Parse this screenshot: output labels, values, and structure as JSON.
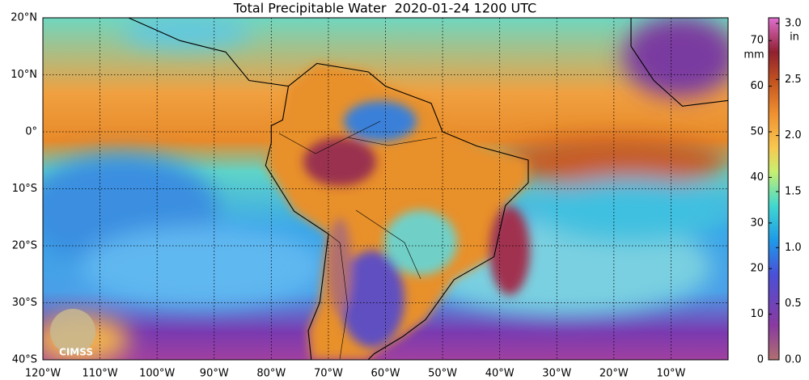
{
  "title": "Total Precipitable Water  2020-01-24 1200 UTC",
  "map": {
    "xlim": [
      -120,
      0
    ],
    "ylim": [
      -40,
      20
    ],
    "grid": true,
    "xticks": [
      {
        "value": -120,
        "label": "120°W"
      },
      {
        "value": -110,
        "label": "110°W"
      },
      {
        "value": -100,
        "label": "100°W"
      },
      {
        "value": -90,
        "label": "90°W"
      },
      {
        "value": -80,
        "label": "80°W"
      },
      {
        "value": -70,
        "label": "70°W"
      },
      {
        "value": -60,
        "label": "60°W"
      },
      {
        "value": -50,
        "label": "50°W"
      },
      {
        "value": -40,
        "label": "40°W"
      },
      {
        "value": -30,
        "label": "30°W"
      },
      {
        "value": -20,
        "label": "20°W"
      },
      {
        "value": -10,
        "label": "10°W"
      }
    ],
    "yticks": [
      {
        "value": 20,
        "label": "20°N"
      },
      {
        "value": 10,
        "label": "10°N"
      },
      {
        "value": 0,
        "label": "0°"
      },
      {
        "value": -10,
        "label": "10°S"
      },
      {
        "value": -20,
        "label": "20°S"
      },
      {
        "value": -30,
        "label": "30°S"
      },
      {
        "value": -40,
        "label": "40°S"
      }
    ]
  },
  "colorbar": {
    "mm_label": "mm",
    "in_label": "in",
    "mm_lim": [
      0,
      75
    ],
    "mm_ticks": [
      0,
      10,
      20,
      30,
      40,
      50,
      60,
      70
    ],
    "in_lim": [
      0,
      3.05
    ],
    "in_ticks": [
      {
        "value": 0,
        "label": "0.0"
      },
      {
        "value": 0.5,
        "label": "0.5"
      },
      {
        "value": 1,
        "label": "1.0"
      },
      {
        "value": 1.5,
        "label": "1.5"
      },
      {
        "value": 2,
        "label": "2.0"
      },
      {
        "value": 2.5,
        "label": "2.5"
      },
      {
        "value": 3,
        "label": "3.0"
      }
    ]
  },
  "logo": "CIMSS"
}
